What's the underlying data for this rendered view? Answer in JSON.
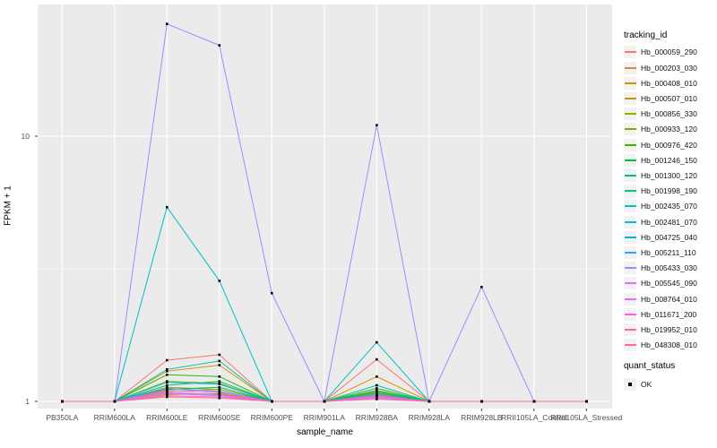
{
  "figure": {
    "panel_background": "#EBEBEB",
    "grid_color": "#FFFFFF",
    "tick_color": "#333333",
    "axis_text_color": "#4D4D4D",
    "legend_key_background": "#F2F2F2",
    "point_color": "#000000"
  },
  "chart_data": {
    "type": "line",
    "xlabel": "sample_name",
    "ylabel": "FPKM + 1",
    "y_scale": "log10",
    "y_ticks": [
      "1",
      "10"
    ],
    "y_tick_values": [
      1,
      10
    ],
    "y_minor_gridlines": [
      3.1623
    ],
    "ylim": [
      0.95,
      31
    ],
    "grid": true,
    "point_shape": "black-square",
    "legend_position": "right",
    "categories": [
      "PB350LA",
      "RRIM600LA",
      "RRIM600LE",
      "RRIM600SE",
      "RRIM600PE",
      "RRIM901LA",
      "RRIM928BA",
      "RRIM928LA",
      "RRIM928LB",
      "RRII105LA_Control",
      "RRII105LA_Stressed"
    ],
    "legend": {
      "title": "tracking_id"
    },
    "quant_legend": {
      "title": "quant_status",
      "items": [
        "OK"
      ]
    },
    "series": [
      {
        "name": "Hb_000059_290",
        "color": "#F8766D",
        "values": [
          1,
          1,
          1.43,
          1.5,
          1,
          1,
          1.44,
          1,
          1,
          1,
          1
        ]
      },
      {
        "name": "Hb_000203_030",
        "color": "#EA8331",
        "values": [
          1,
          1,
          1.09,
          1.11,
          1,
          1,
          1.07,
          1,
          1,
          1,
          1
        ]
      },
      {
        "name": "Hb_000408_010",
        "color": "#D89000",
        "values": [
          1,
          1,
          1.3,
          1.37,
          1,
          1,
          1.24,
          1,
          1,
          1,
          1
        ]
      },
      {
        "name": "Hb_000507_010",
        "color": "#C09B00",
        "values": [
          1,
          1,
          1.06,
          1.07,
          1,
          1,
          1.05,
          1,
          1,
          1,
          1
        ]
      },
      {
        "name": "Hb_000856_330",
        "color": "#A3A500",
        "values": [
          1,
          1,
          1.13,
          1.11,
          1,
          1,
          1.07,
          1,
          1,
          1,
          1
        ]
      },
      {
        "name": "Hb_000933_120",
        "color": "#7CAE00",
        "values": [
          1,
          1,
          1.19,
          1.17,
          1,
          1,
          1.09,
          1,
          1,
          1,
          1
        ]
      },
      {
        "name": "Hb_000976_420",
        "color": "#39B600",
        "values": [
          1,
          1,
          1.26,
          1.24,
          1,
          1,
          1.12,
          1,
          1,
          1,
          1
        ]
      },
      {
        "name": "Hb_001246_150",
        "color": "#00BB4E",
        "values": [
          1,
          1,
          1.11,
          1.13,
          1,
          1,
          1.08,
          1,
          1,
          1,
          1
        ]
      },
      {
        "name": "Hb_001300_120",
        "color": "#00BF7D",
        "values": [
          1,
          1,
          1.15,
          1.19,
          1,
          1,
          1.1,
          1,
          1,
          1,
          1
        ]
      },
      {
        "name": "Hb_001998_190",
        "color": "#00C1A3",
        "values": [
          1,
          1,
          1.32,
          1.42,
          1,
          1,
          1.15,
          1,
          1,
          1,
          1
        ]
      },
      {
        "name": "Hb_002435_070",
        "color": "#00BFC4",
        "values": [
          1,
          1,
          5.4,
          2.85,
          1,
          1,
          1.67,
          1,
          1,
          1,
          1
        ]
      },
      {
        "name": "Hb_002481_070",
        "color": "#00BAE0",
        "values": [
          1,
          1,
          1.18,
          1.16,
          1,
          1,
          1.06,
          1,
          1,
          1,
          1
        ]
      },
      {
        "name": "Hb_004725_040",
        "color": "#00B0F6",
        "values": [
          1,
          1,
          1.08,
          1.06,
          1,
          1,
          1.04,
          1,
          1,
          1,
          1
        ]
      },
      {
        "name": "Hb_005211_110",
        "color": "#35A2FF",
        "values": [
          1,
          1,
          1.12,
          1.09,
          1,
          1,
          1.06,
          1,
          1,
          1,
          1
        ]
      },
      {
        "name": "Hb_005433_030",
        "color": "#9590FF",
        "values": [
          1,
          1,
          26.5,
          22,
          2.56,
          1,
          11,
          1,
          2.7,
          1,
          1
        ]
      },
      {
        "name": "Hb_005545_090",
        "color": "#C77CFF",
        "values": [
          1,
          1,
          1.07,
          1.05,
          1,
          1,
          1.04,
          1,
          1,
          1,
          1
        ]
      },
      {
        "name": "Hb_008764_010",
        "color": "#E76BF3",
        "values": [
          1,
          1,
          1.1,
          1.08,
          1,
          1,
          1.05,
          1,
          1,
          1,
          1
        ]
      },
      {
        "name": "Hb_011671_200",
        "color": "#FA62DB",
        "values": [
          1,
          1,
          1.05,
          1.04,
          1,
          1,
          1.03,
          1,
          1,
          1,
          1
        ]
      },
      {
        "name": "Hb_019952_010",
        "color": "#FF62BC",
        "values": [
          1,
          1,
          1.08,
          1.06,
          1,
          1,
          1.05,
          1,
          1,
          1,
          1
        ]
      },
      {
        "name": "Hb_048308_010",
        "color": "#FF6A98",
        "values": [
          1,
          1,
          1.04,
          1.03,
          1,
          1,
          1.02,
          1,
          1,
          1,
          1
        ]
      }
    ]
  }
}
